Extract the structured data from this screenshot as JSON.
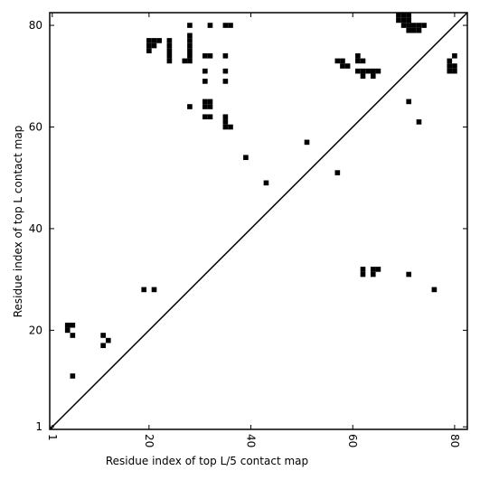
{
  "chart_data": {
    "type": "scatter",
    "xlabel": "Residue index of top L/5 contact map",
    "ylabel": "Residue index of top L contact map",
    "xlim": [
      0.5,
      82.5
    ],
    "ylim": [
      0.5,
      82.5
    ],
    "xticks": [
      1,
      20,
      40,
      60,
      80
    ],
    "yticks": [
      1,
      20,
      40,
      60,
      80
    ],
    "color": "#000000",
    "diagonal": true,
    "x": [
      28,
      32,
      35,
      36,
      20,
      21,
      22,
      20,
      21,
      20,
      24,
      24,
      24,
      24,
      24,
      28,
      28,
      28,
      28,
      28,
      28,
      27,
      31,
      32,
      35,
      31,
      35,
      31,
      35,
      28,
      31,
      32,
      31,
      32,
      31,
      32,
      35,
      35,
      35,
      36,
      51,
      39,
      43,
      57,
      71,
      73,
      69,
      70,
      71,
      69,
      70,
      71,
      70,
      71,
      72,
      73,
      74,
      71,
      72,
      73,
      57,
      58,
      58,
      59,
      61,
      61,
      62,
      61,
      62,
      63,
      64,
      65,
      62,
      64,
      80,
      79,
      79,
      80,
      79,
      80,
      19,
      21,
      4,
      5,
      4,
      5,
      11,
      12,
      11,
      5,
      62,
      62,
      64,
      65,
      64,
      71,
      76
    ],
    "values": [
      80,
      80,
      80,
      80,
      77,
      77,
      77,
      76,
      76,
      75,
      77,
      76,
      75,
      74,
      73,
      78,
      77,
      76,
      75,
      74,
      73,
      73,
      74,
      74,
      74,
      71,
      71,
      69,
      69,
      64,
      65,
      65,
      64,
      64,
      62,
      62,
      62,
      61,
      60,
      60,
      57,
      54,
      49,
      51,
      65,
      61,
      82,
      82,
      82,
      81,
      81,
      81,
      80,
      80,
      80,
      80,
      80,
      79,
      79,
      79,
      73,
      73,
      72,
      72,
      74,
      73,
      73,
      71,
      71,
      71,
      71,
      71,
      70,
      70,
      74,
      73,
      72,
      72,
      71,
      71,
      28,
      28,
      21,
      21,
      20,
      19,
      19,
      18,
      17,
      11,
      32,
      31,
      32,
      32,
      31,
      31,
      28
    ]
  }
}
